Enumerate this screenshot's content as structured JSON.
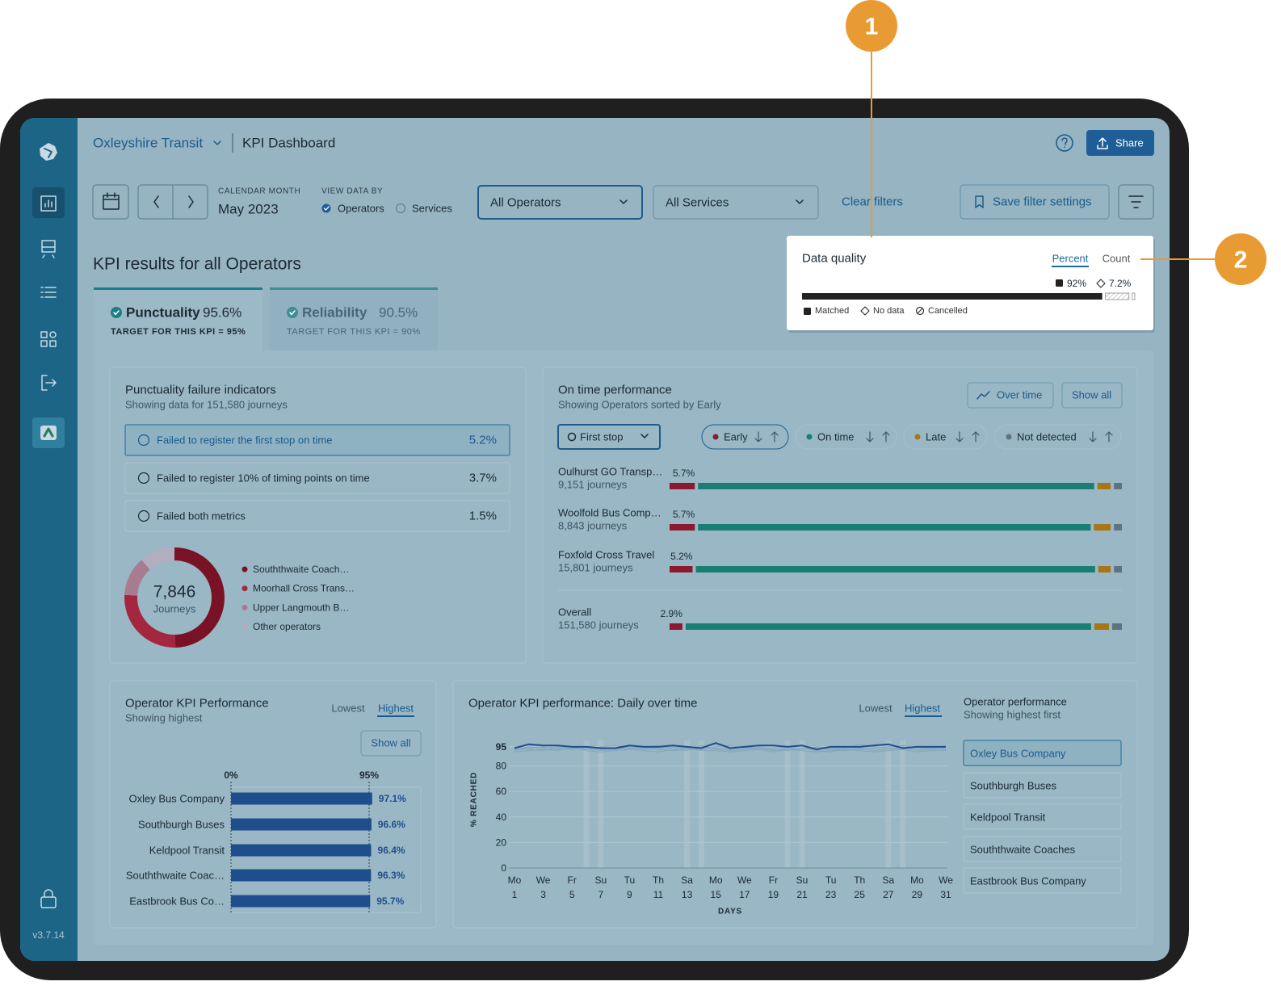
{
  "callouts": [
    "1",
    "2"
  ],
  "sidebar": {
    "version": "v3.7.14"
  },
  "header": {
    "organisation": "Oxleyshire Transit",
    "page_title": "KPI Dashboard",
    "share": "Share"
  },
  "filters": {
    "month_label": "CALENDAR MONTH",
    "month": "May 2023",
    "view_label": "VIEW DATA BY",
    "view_options": [
      "Operators",
      "Services"
    ],
    "operator_select": "All Operators",
    "service_select": "All Services",
    "clear": "Clear filters",
    "save": "Save filter settings"
  },
  "data_quality": {
    "title": "Data quality",
    "tabs": [
      "Percent",
      "Count"
    ],
    "legend": [
      "Matched",
      "No data",
      "Cancelled"
    ],
    "values": [
      92,
      7.2,
      0.8
    ],
    "value_labels": [
      "92%",
      "7.2%",
      null
    ]
  },
  "kpi": {
    "heading": "KPI results for all Operators",
    "tabs": [
      {
        "name": "Punctuality",
        "value": "95.6%",
        "target": "TARGET FOR THIS KPI = 95%"
      },
      {
        "name": "Reliability",
        "value": "90.5%",
        "target": "TARGET FOR THIS KPI = 90%"
      }
    ]
  },
  "punctuality_failures": {
    "title": "Punctuality failure indicators",
    "subtitle": "Showing data for 151,580 journeys",
    "items": [
      {
        "label": "Failed to register the first stop on time",
        "value": "5.2%"
      },
      {
        "label": "Failed to register 10% of timing points on time",
        "value": "3.7%"
      },
      {
        "label": "Failed both metrics",
        "value": "1.5%"
      }
    ],
    "donut": {
      "total": "7,846",
      "unit": "Journeys",
      "series": [
        {
          "name": "Souththwaite Coach…",
          "color": "#7a1226",
          "value": 3900
        },
        {
          "name": "Moorhall Cross Trans…",
          "color": "#a5263f",
          "value": 2050
        },
        {
          "name": "Upper Langmouth B…",
          "color": "#a97b8f",
          "value": 1000
        },
        {
          "name": "Other operators",
          "color": "#b3adc0",
          "value": 896
        }
      ]
    }
  },
  "on_time": {
    "title": "On time performance",
    "subtitle": "Showing Operators sorted by Early",
    "buttons": [
      "Over time",
      "Show all"
    ],
    "stop_select": "First stop",
    "statuses": [
      {
        "name": "Early",
        "color": "#8b1a2e"
      },
      {
        "name": "On time",
        "color": "#1b7e74"
      },
      {
        "name": "Late",
        "color": "#a87615"
      },
      {
        "name": "Not detected",
        "color": "#5e7380"
      }
    ],
    "rows": [
      {
        "name": "Oulhurst GO Transp…",
        "journeys": "9,151 journeys",
        "values": [
          5.7,
          89.5,
          3.0,
          1.8
        ],
        "value_label": "5.7%"
      },
      {
        "name": "Woolfold Bus Comp…",
        "journeys": "8,843 journeys",
        "values": [
          5.7,
          88.7,
          3.8,
          1.8
        ],
        "value_label": "5.7%"
      },
      {
        "name": "Foxfold Cross Travel",
        "journeys": "15,801 journeys",
        "values": [
          5.2,
          90.2,
          2.8,
          1.8
        ],
        "value_label": "5.2%"
      },
      {
        "name": "Overall",
        "journeys": "151,580 journeys",
        "values": [
          2.9,
          91.6,
          3.3,
          2.2
        ],
        "value_label": "2.9%"
      }
    ]
  },
  "chart_data": [
    {
      "type": "bar",
      "orientation": "horizontal",
      "title": "Operator KPI Performance",
      "subtitle": "Showing highest",
      "tabs": [
        "Lowest",
        "Highest"
      ],
      "button": "Show all",
      "categories": [
        "Oxley Bus Company",
        "Southburgh Buses",
        "Keldpool Transit",
        "Souththwaite Coac…",
        "Eastbrook Bus Co…"
      ],
      "values": [
        97.1,
        96.6,
        96.4,
        96.3,
        95.7
      ],
      "value_labels": [
        "97.1%",
        "96.6%",
        "96.4%",
        "96.3%",
        "95.7%"
      ],
      "color": "#1f4e8c",
      "xlim": [
        0,
        100
      ],
      "xticks": [
        {
          "value": 0,
          "label": "0%"
        },
        {
          "value": 95,
          "label": "95%"
        }
      ]
    },
    {
      "type": "line",
      "title": "Operator KPI performance: Daily over time",
      "tabs": [
        "Lowest",
        "Highest"
      ],
      "ylabel": "% REACHED",
      "xlabel": "DAYS",
      "legend_title": "Operator performance",
      "legend_subtitle": "Showing highest first",
      "x": [
        1,
        2,
        3,
        4,
        5,
        6,
        7,
        8,
        9,
        10,
        11,
        12,
        13,
        14,
        15,
        16,
        17,
        18,
        19,
        20,
        21,
        22,
        23,
        24,
        25,
        26,
        27,
        28,
        29,
        30,
        31
      ],
      "xlim": [
        1,
        31
      ],
      "xticks": [
        1,
        3,
        5,
        7,
        9,
        11,
        13,
        15,
        17,
        19,
        21,
        23,
        25,
        27,
        29,
        31
      ],
      "xtick_weekdays": [
        "Mo",
        "We",
        "Fr",
        "Su",
        "Tu",
        "Th",
        "Sa",
        "Mo",
        "We",
        "Fr",
        "Su",
        "Tu",
        "Th",
        "Sa",
        "Mo",
        "We"
      ],
      "ylim": [
        0,
        100
      ],
      "yticks": [
        0,
        20,
        40,
        60,
        80,
        95
      ],
      "grid": true,
      "shaded_days": [
        6,
        7,
        13,
        14,
        20,
        21,
        27,
        28
      ],
      "series": [
        {
          "name": "Oxley Bus Company",
          "color": "#1f4e8c",
          "values": [
            94,
            97,
            96,
            96,
            95,
            95,
            94,
            94,
            96,
            95,
            95,
            96,
            95,
            94,
            98,
            94,
            95,
            96,
            96,
            95,
            96,
            93,
            95,
            95,
            95,
            96,
            97,
            94,
            95,
            95,
            95
          ]
        },
        {
          "name": "Southburgh Buses",
          "color": "#7fa3bd",
          "values": [
            93,
            95,
            94,
            95,
            94,
            93,
            95,
            96,
            94,
            93,
            94,
            95,
            94,
            93,
            95,
            96,
            94,
            93,
            94,
            95,
            96,
            94,
            93,
            94,
            97,
            95,
            94,
            93,
            95,
            94,
            96
          ]
        },
        {
          "name": "Keldpool Transit",
          "color": "#7fa3bd",
          "values": [
            92,
            94,
            95,
            93,
            94,
            95,
            93,
            94,
            93,
            95,
            96,
            93,
            92,
            95,
            94,
            93,
            95,
            94,
            92,
            94,
            93,
            95,
            94,
            92,
            93,
            94,
            95,
            96,
            94,
            93,
            94
          ]
        },
        {
          "name": "Souththwaite Coaches",
          "color": "#7fa3bd",
          "values": [
            95,
            93,
            92,
            94,
            93,
            94,
            92,
            93,
            95,
            94,
            93,
            92,
            93,
            96,
            93,
            92,
            93,
            95,
            93,
            92,
            94,
            92,
            91,
            93,
            94,
            92,
            93,
            95,
            92,
            94,
            93
          ]
        },
        {
          "name": "Eastbrook Bus Company",
          "color": "#7fa3bd",
          "values": [
            91,
            92,
            93,
            92,
            95,
            92,
            91,
            92,
            93,
            92,
            91,
            93,
            94,
            92,
            92,
            91,
            92,
            93,
            91,
            93,
            92,
            91,
            92,
            93,
            92,
            91,
            92,
            93,
            91,
            92,
            92
          ]
        }
      ]
    }
  ]
}
